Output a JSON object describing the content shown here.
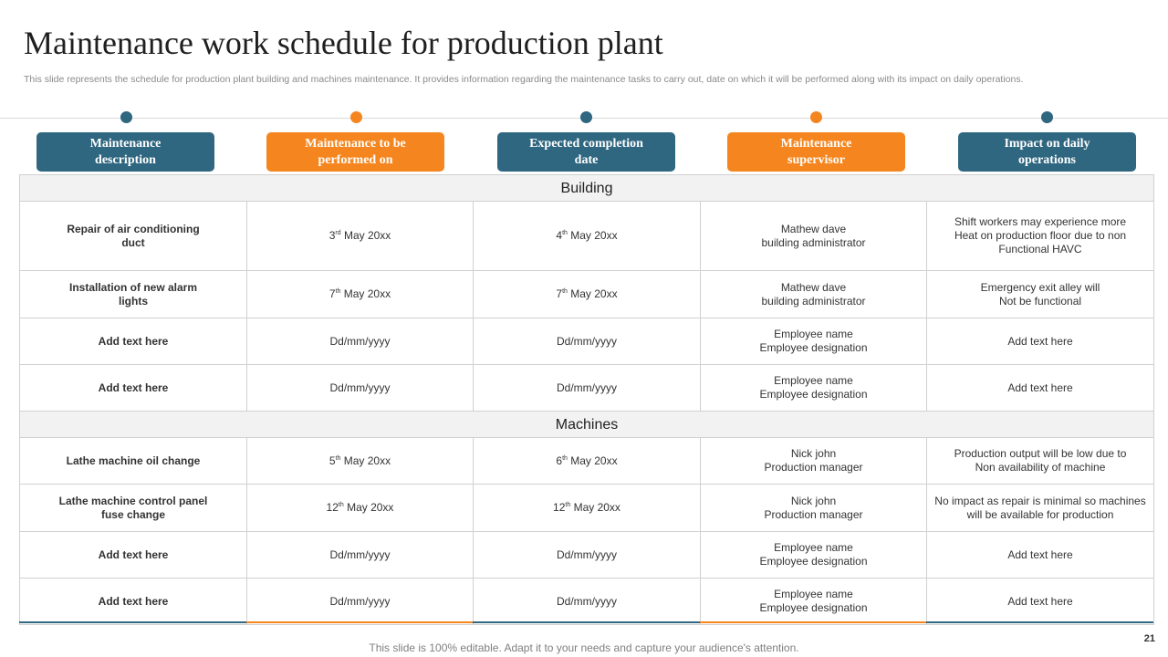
{
  "title": "Maintenance work schedule for production plant",
  "subtitle": "This slide represents the schedule for production plant building and machines maintenance. It provides information regarding the maintenance tasks to carry out, date on which it will be performed along with its impact on daily operations.",
  "colors": {
    "blue": "#2f6680",
    "orange": "#f5861f",
    "section_bg": "#f2f2f2"
  },
  "headers": [
    {
      "label": "Maintenance description",
      "color": "blue"
    },
    {
      "label": "Maintenance to be performed on",
      "color": "orange"
    },
    {
      "label": "Expected completion date",
      "color": "blue"
    },
    {
      "label": "Maintenance supervisor",
      "color": "orange"
    },
    {
      "label": "Impact on daily operations",
      "color": "blue"
    }
  ],
  "sections": [
    {
      "name": "Building",
      "rows": [
        {
          "task": "Repair of air conditioning  duct",
          "start": {
            "day": "3",
            "suffix": "rd",
            "rest": " May 20xx"
          },
          "end": {
            "day": "4",
            "suffix": "th",
            "rest": " May 20xx"
          },
          "supervisor": [
            "Mathew dave",
            "building administrator"
          ],
          "impact": [
            "Shift workers may experience more",
            "Heat on production floor due to non",
            "Functional HAVC"
          ]
        },
        {
          "task": "Installation  of new alarm lights",
          "start": {
            "day": "7",
            "suffix": "th",
            "rest": " May 20xx"
          },
          "end": {
            "day": "7",
            "suffix": "th",
            "rest": " May 20xx"
          },
          "supervisor": [
            "Mathew dave",
            "building administrator"
          ],
          "impact": [
            "Emergency exit alley will",
            "Not be functional"
          ]
        },
        {
          "task": "Add  text here",
          "start": {
            "day": "Dd/mm/yyyy",
            "suffix": "",
            "rest": ""
          },
          "end": {
            "day": "Dd/mm/yyyy",
            "suffix": "",
            "rest": ""
          },
          "supervisor": [
            "Employee name",
            "Employee designation"
          ],
          "impact": [
            "Add text here"
          ]
        },
        {
          "task": "Add  text here",
          "start": {
            "day": "Dd/mm/yyyy",
            "suffix": "",
            "rest": ""
          },
          "end": {
            "day": "Dd/mm/yyyy",
            "suffix": "",
            "rest": ""
          },
          "supervisor": [
            "Employee name",
            "Employee designation"
          ],
          "impact": [
            "Add text here"
          ]
        }
      ]
    },
    {
      "name": "Machines",
      "rows": [
        {
          "task": "Lathe machine oil change",
          "start": {
            "day": "5",
            "suffix": "th",
            "rest": " May 20xx"
          },
          "end": {
            "day": "6",
            "suffix": "th",
            "rest": " May 20xx"
          },
          "supervisor": [
            "Nick john",
            "Production manager"
          ],
          "impact": [
            "Production output will be low due to",
            "Non availability of machine"
          ]
        },
        {
          "task": "Lathe machine control panel fuse change",
          "start": {
            "day": "12",
            "suffix": "th",
            "rest": " May 20xx"
          },
          "end": {
            "day": "12",
            "suffix": "th",
            "rest": " May 20xx"
          },
          "supervisor": [
            "Nick john",
            "Production manager"
          ],
          "impact": [
            "No impact as repair is minimal so machines",
            "will be available for production"
          ]
        },
        {
          "task": "Add  text here",
          "start": {
            "day": "Dd/mm/yyyy",
            "suffix": "",
            "rest": ""
          },
          "end": {
            "day": "Dd/mm/yyyy",
            "suffix": "",
            "rest": ""
          },
          "supervisor": [
            "Employee name",
            "Employee designation"
          ],
          "impact": [
            "Add text here"
          ]
        },
        {
          "task": "Add  text here",
          "start": {
            "day": "Dd/mm/yyyy",
            "suffix": "",
            "rest": ""
          },
          "end": {
            "day": "Dd/mm/yyyy",
            "suffix": "",
            "rest": ""
          },
          "supervisor": [
            "Employee name",
            "Employee designation"
          ],
          "impact": [
            "Add text here"
          ]
        }
      ]
    }
  ],
  "footer": "This slide is 100% editable. Adapt it to your needs and capture your audience's attention.",
  "page_number": "21"
}
